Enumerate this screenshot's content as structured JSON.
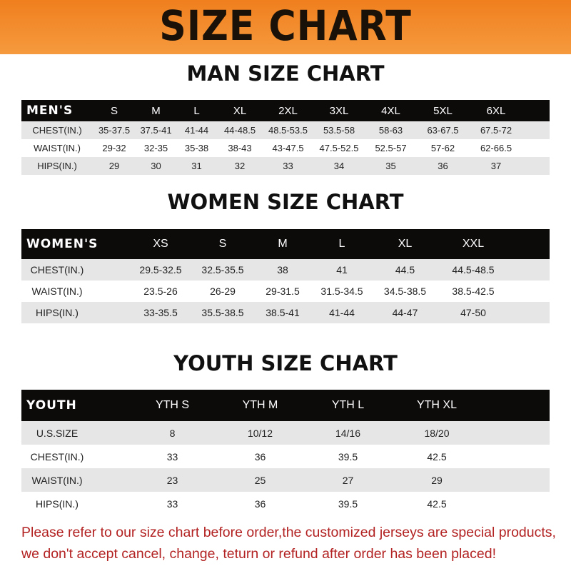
{
  "title": "SIZE CHART",
  "men": {
    "title": "MAN SIZE CHART",
    "header": [
      "MEN'S",
      "S",
      "M",
      "L",
      "XL",
      "2XL",
      "3XL",
      "4XL",
      "5XL",
      "6XL"
    ],
    "rows": [
      [
        "CHEST(IN.)",
        "35-37.5",
        "37.5-41",
        "41-44",
        "44-48.5",
        "48.5-53.5",
        "53.5-58",
        "58-63",
        "63-67.5",
        "67.5-72"
      ],
      [
        "WAIST(IN.)",
        "29-32",
        "32-35",
        "35-38",
        "38-43",
        "43-47.5",
        "47.5-52.5",
        "52.5-57",
        "57-62",
        "62-66.5"
      ],
      [
        "HIPS(IN.)",
        "29",
        "30",
        "31",
        "32",
        "33",
        "34",
        "35",
        "36",
        "37"
      ]
    ]
  },
  "women": {
    "title": "WOMEN SIZE CHART",
    "header": [
      "WOMEN'S",
      "XS",
      "S",
      "M",
      "L",
      "XL",
      "XXL"
    ],
    "rows": [
      [
        "CHEST(IN.)",
        "29.5-32.5",
        "32.5-35.5",
        "38",
        "41",
        "44.5",
        "44.5-48.5"
      ],
      [
        "WAIST(IN.)",
        "23.5-26",
        "26-29",
        "29-31.5",
        "31.5-34.5",
        "34.5-38.5",
        "38.5-42.5"
      ],
      [
        "HIPS(IN.)",
        "33-35.5",
        "35.5-38.5",
        "38.5-41",
        "41-44",
        "44-47",
        "47-50"
      ]
    ]
  },
  "youth": {
    "title": "YOUTH SIZE CHART",
    "header": [
      "YOUTH",
      "YTH S",
      "YTH M",
      "YTH L",
      "YTH XL"
    ],
    "rows": [
      [
        "U.S.SIZE",
        "8",
        "10/12",
        "14/16",
        "18/20"
      ],
      [
        "CHEST(IN.)",
        "33",
        "36",
        "39.5",
        "42.5"
      ],
      [
        "WAIST(IN.)",
        "23",
        "25",
        "27",
        "29"
      ],
      [
        "HIPS(IN.)",
        "33",
        "36",
        "39.5",
        "42.5"
      ]
    ]
  },
  "note": {
    "line1": "Please refer to our size chart before order,the customized jerseys are special products,",
    "line2": "we don't accept cancel, change, teturn or refund after order has been placed!"
  },
  "colors": {
    "banner": "#f07f1e",
    "header_row": "#0d0a0a",
    "stripe": "#e6e6e6",
    "note": "#b32222"
  }
}
